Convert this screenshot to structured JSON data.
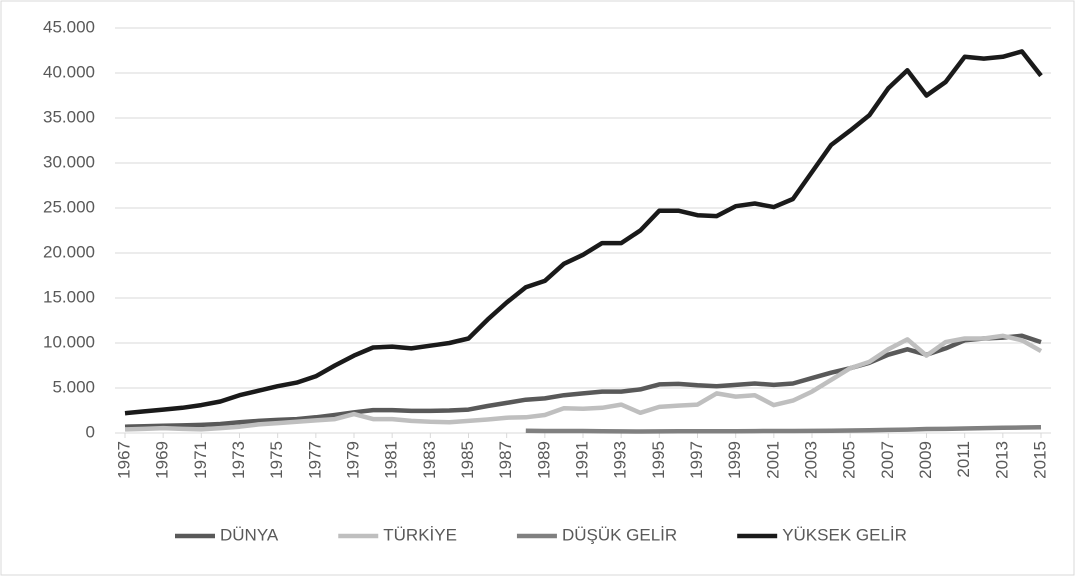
{
  "chart_data": {
    "type": "line",
    "x": [
      1967,
      1968,
      1969,
      1970,
      1971,
      1972,
      1973,
      1974,
      1975,
      1976,
      1977,
      1978,
      1979,
      1980,
      1981,
      1982,
      1983,
      1984,
      1985,
      1986,
      1987,
      1988,
      1989,
      1990,
      1991,
      1992,
      1993,
      1994,
      1995,
      1996,
      1997,
      1998,
      1999,
      2000,
      2001,
      2002,
      2003,
      2004,
      2005,
      2006,
      2007,
      2008,
      2009,
      2010,
      2011,
      2012,
      2013,
      2014,
      2015
    ],
    "xlim": [
      1967,
      2015
    ],
    "xticks": [
      1967,
      1969,
      1971,
      1973,
      1975,
      1977,
      1979,
      1981,
      1983,
      1985,
      1987,
      1989,
      1991,
      1993,
      1995,
      1997,
      1999,
      2001,
      2003,
      2005,
      2007,
      2009,
      2011,
      2013,
      2015
    ],
    "ylim": [
      0,
      45000
    ],
    "yticks": [
      0,
      {
        "value": 5000,
        "label": "5.000"
      },
      {
        "value": 10000,
        "label": "10.000"
      },
      {
        "value": 15000,
        "label": "15.000"
      },
      {
        "value": 20000,
        "label": "20.000"
      },
      {
        "value": 25000,
        "label": "25.000"
      },
      {
        "value": 30000,
        "label": "30.000"
      },
      {
        "value": 35000,
        "label": "35.000"
      },
      {
        "value": 40000,
        "label": "40.000"
      },
      {
        "value": 45000,
        "label": "45.000"
      }
    ],
    "grid": true,
    "legend": "bottom",
    "series": [
      {
        "name": "DÜNYA",
        "color": "#595959",
        "values": [
          700,
          750,
          800,
          850,
          900,
          1000,
          1200,
          1350,
          1450,
          1550,
          1750,
          2000,
          2300,
          2550,
          2550,
          2450,
          2450,
          2500,
          2600,
          3000,
          3350,
          3700,
          3850,
          4200,
          4400,
          4600,
          4600,
          4850,
          5400,
          5450,
          5300,
          5200,
          5350,
          5500,
          5350,
          5500,
          6100,
          6700,
          7200,
          7800,
          8700,
          9300,
          8700,
          9400,
          10300,
          10500,
          10600,
          10800,
          10100
        ]
      },
      {
        "name": "TÜRKİYE",
        "color": "#bfbfbf",
        "values": [
          400,
          450,
          550,
          450,
          400,
          550,
          700,
          950,
          1100,
          1250,
          1400,
          1550,
          2100,
          1550,
          1550,
          1350,
          1250,
          1200,
          1350,
          1500,
          1700,
          1750,
          2000,
          2750,
          2700,
          2800,
          3150,
          2250,
          2900,
          3050,
          3150,
          4400,
          4050,
          4200,
          3100,
          3600,
          4600,
          5900,
          7200,
          7900,
          9300,
          10400,
          8600,
          10100,
          10500,
          10500,
          10800,
          10300,
          9100
        ]
      },
      {
        "name": "DÜŞÜK GELİR",
        "color": "#808080",
        "values": [
          null,
          null,
          null,
          null,
          null,
          null,
          null,
          null,
          null,
          null,
          null,
          null,
          null,
          null,
          null,
          null,
          null,
          null,
          null,
          null,
          null,
          250,
          220,
          220,
          220,
          200,
          180,
          170,
          180,
          190,
          200,
          200,
          200,
          210,
          220,
          220,
          230,
          250,
          280,
          310,
          340,
          380,
          440,
          460,
          500,
          550,
          580,
          610,
          640
        ]
      },
      {
        "name": "YÜKSEK GELİR",
        "color": "#1a1a1a",
        "values": [
          2200,
          2400,
          2600,
          2800,
          3100,
          3500,
          4200,
          4700,
          5200,
          5600,
          6300,
          7500,
          8600,
          9500,
          9600,
          9400,
          9700,
          10000,
          10500,
          12600,
          14500,
          16200,
          16900,
          18800,
          19800,
          21100,
          21100,
          22500,
          24700,
          24700,
          24200,
          24100,
          25200,
          25500,
          25100,
          26000,
          29000,
          32000,
          33600,
          35300,
          38300,
          40300,
          37500,
          39000,
          41800,
          41600,
          41800,
          42400,
          39700
        ]
      }
    ]
  }
}
